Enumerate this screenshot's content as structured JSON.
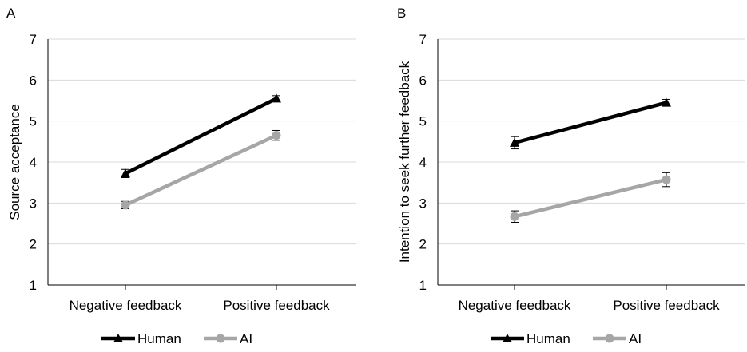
{
  "chart_data": [
    {
      "type": "line",
      "panel_label": "A",
      "title": "",
      "xlabel": "",
      "ylabel": "Source acceptance",
      "categories": [
        "Negative feedback",
        "Positive feedback"
      ],
      "ylim": [
        1,
        7
      ],
      "yticks": [
        1,
        2,
        3,
        4,
        5,
        6,
        7
      ],
      "grid": true,
      "legend_position": "bottom",
      "series": [
        {
          "name": "Human",
          "marker": "triangle",
          "color": "#000000",
          "values": [
            3.72,
            5.55
          ],
          "errors": [
            0.1,
            0.07
          ]
        },
        {
          "name": "AI",
          "marker": "circle",
          "color": "#a6a6a6",
          "values": [
            2.95,
            4.65
          ],
          "errors": [
            0.09,
            0.12
          ]
        }
      ]
    },
    {
      "type": "line",
      "panel_label": "B",
      "title": "",
      "xlabel": "",
      "ylabel": "Intention to seek further feedback",
      "categories": [
        "Negative feedback",
        "Positive feedback"
      ],
      "ylim": [
        1,
        7
      ],
      "yticks": [
        1,
        2,
        3,
        4,
        5,
        6,
        7
      ],
      "grid": true,
      "legend_position": "bottom",
      "series": [
        {
          "name": "Human",
          "marker": "triangle",
          "color": "#000000",
          "values": [
            4.47,
            5.45
          ],
          "errors": [
            0.15,
            0.08
          ]
        },
        {
          "name": "AI",
          "marker": "circle",
          "color": "#a6a6a6",
          "values": [
            2.67,
            3.57
          ],
          "errors": [
            0.14,
            0.17
          ]
        }
      ]
    }
  ]
}
